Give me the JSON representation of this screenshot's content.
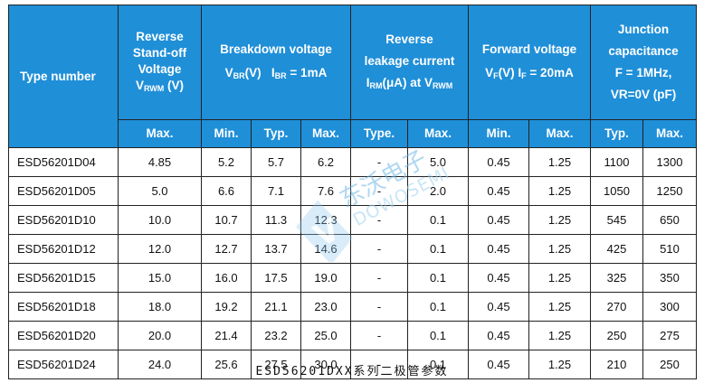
{
  "header": {
    "type_number": "Type number",
    "standoff": {
      "line1": "Reverse",
      "line2": "Stand-off",
      "line3": "Voltage",
      "sym": "V",
      "sub": "RWM",
      "unit": " (V)"
    },
    "breakdown": {
      "line1": "Breakdown voltage",
      "sym": "V",
      "sub": "BR",
      "mid": "(V)   I",
      "sub2": "BR",
      "cond": " = 1mA"
    },
    "leakage": {
      "line1": "Reverse",
      "line2": "leakage current",
      "sym": "I",
      "sub": "RM",
      "mid": "(μA) at V",
      "sub2": "RWM"
    },
    "forward": {
      "line1": "Forward voltage",
      "sym": "V",
      "sub": "F",
      "mid": "(V) I",
      "sub2": "F",
      "cond": " = 20mA"
    },
    "junction": {
      "line1": "Junction",
      "line2": "capacitance",
      "line3": "F = 1MHz,",
      "line4": "VR=0V (pF)"
    },
    "sub_labels": [
      "Max.",
      "Min.",
      "Typ.",
      "Max.",
      "Type.",
      "Max.",
      "Min.",
      "Max.",
      "Typ.",
      "Max."
    ]
  },
  "rows": [
    [
      "ESD56201D04",
      "4.85",
      "5.2",
      "5.7",
      "6.2",
      "-",
      "5.0",
      "0.45",
      "1.25",
      "1100",
      "1300"
    ],
    [
      "ESD56201D05",
      "5.0",
      "6.6",
      "7.1",
      "7.6",
      "-",
      "2.0",
      "0.45",
      "1.25",
      "1050",
      "1250"
    ],
    [
      "ESD56201D10",
      "10.0",
      "10.7",
      "11.3",
      "12.3",
      "-",
      "0.1",
      "0.45",
      "1.25",
      "545",
      "650"
    ],
    [
      "ESD56201D12",
      "12.0",
      "12.7",
      "13.7",
      "14.6",
      "-",
      "0.1",
      "0.45",
      "1.25",
      "425",
      "510"
    ],
    [
      "ESD56201D15",
      "15.0",
      "16.0",
      "17.5",
      "19.0",
      "-",
      "0.1",
      "0.45",
      "1.25",
      "325",
      "350"
    ],
    [
      "ESD56201D18",
      "18.0",
      "19.2",
      "21.1",
      "23.0",
      "-",
      "0.1",
      "0.45",
      "1.25",
      "270",
      "300"
    ],
    [
      "ESD56201D20",
      "20.0",
      "21.4",
      "23.2",
      "25.0",
      "-",
      "0.1",
      "0.45",
      "1.25",
      "250",
      "275"
    ],
    [
      "ESD56201D24",
      "24.0",
      "25.6",
      "27.5",
      "30.0",
      "-",
      "0.1",
      "0.45",
      "1.25",
      "210",
      "250"
    ]
  ],
  "caption": "ESD56201DXX系列二极管参数",
  "watermark": {
    "cn": "东沃电子",
    "en": "DOWOSEMI"
  },
  "colors": {
    "header_bg": "#1f8fd8",
    "header_text": "#ffffff"
  }
}
